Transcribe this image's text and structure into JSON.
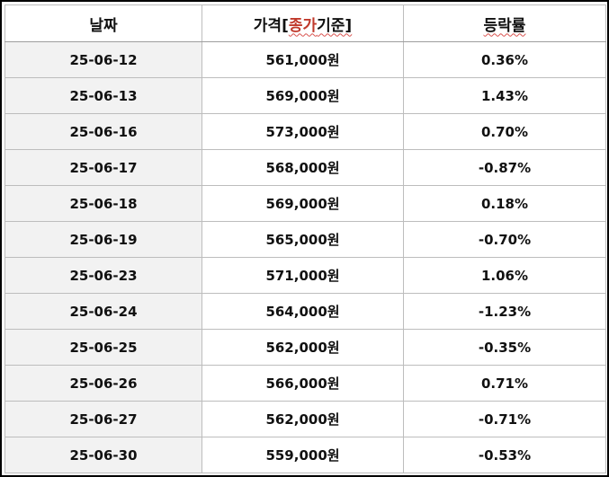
{
  "header": {
    "date_label": "날짜",
    "price_label_prefix": "가격[",
    "price_label_accent": "종가",
    "price_label_suffix": "기준]",
    "change_label": "등락률"
  },
  "accent_color": "#c0392b",
  "rows": [
    {
      "date": "25-06-12",
      "price": "561,000원",
      "change": "0.36%"
    },
    {
      "date": "25-06-13",
      "price": "569,000원",
      "change": "1.43%"
    },
    {
      "date": "25-06-16",
      "price": "573,000원",
      "change": "0.70%"
    },
    {
      "date": "25-06-17",
      "price": "568,000원",
      "change": "-0.87%"
    },
    {
      "date": "25-06-18",
      "price": "569,000원",
      "change": "0.18%"
    },
    {
      "date": "25-06-19",
      "price": "565,000원",
      "change": "-0.70%"
    },
    {
      "date": "25-06-23",
      "price": "571,000원",
      "change": "1.06%"
    },
    {
      "date": "25-06-24",
      "price": "564,000원",
      "change": "-1.23%"
    },
    {
      "date": "25-06-25",
      "price": "562,000원",
      "change": "-0.35%"
    },
    {
      "date": "25-06-26",
      "price": "566,000원",
      "change": "0.71%"
    },
    {
      "date": "25-06-27",
      "price": "562,000원",
      "change": "-0.71%"
    },
    {
      "date": "25-06-30",
      "price": "559,000원",
      "change": "-0.53%"
    }
  ]
}
